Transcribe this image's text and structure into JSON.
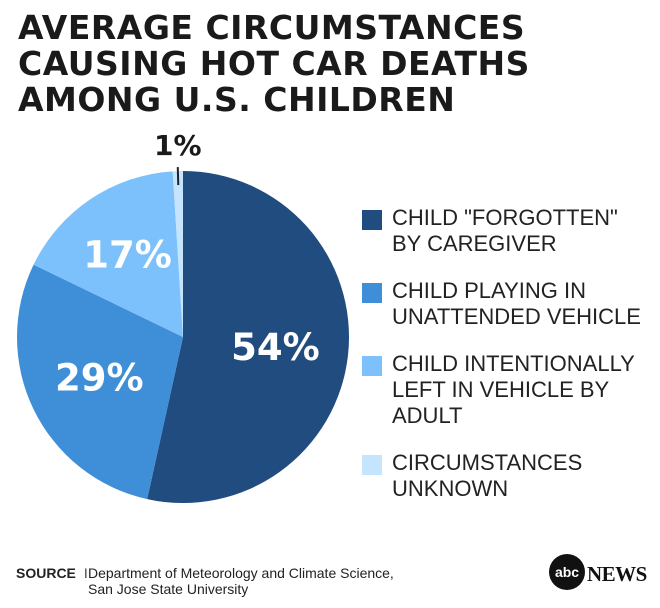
{
  "title_lines": [
    "AVERAGE CIRCUMSTANCES",
    "CAUSING HOT CAR DEATHS",
    "AMONG U.S. CHILDREN"
  ],
  "chart_data": {
    "type": "pie",
    "title": "AVERAGE CIRCUMSTANCES CAUSING HOT CAR DEATHS AMONG U.S. CHILDREN",
    "slices": [
      {
        "label": "CHILD \"FORGOTTEN\" BY CAREGIVER",
        "label_lines": [
          "CHILD \"FORGOTTEN\"",
          "BY CAREGIVER"
        ],
        "value": 54,
        "display": "54%",
        "color": "#214c80"
      },
      {
        "label": "CHILD PLAYING IN UNATTENDED VEHICLE",
        "label_lines": [
          "CHILD PLAYING IN",
          "UNATTENDED VEHICLE"
        ],
        "value": 29,
        "display": "29%",
        "color": "#3f8ed8"
      },
      {
        "label": "CHILD INTENTIONALLY LEFT IN VEHICLE BY ADULT",
        "label_lines": [
          "CHILD INTENTIONALLY",
          "LEFT IN VEHICLE BY",
          "ADULT"
        ],
        "value": 17,
        "display": "17%",
        "color": "#7cc1fb"
      },
      {
        "label": "CIRCUMSTANCES UNKNOWN",
        "label_lines": [
          "CIRCUMSTANCES",
          "UNKNOWN"
        ],
        "value": 1,
        "display": "1%",
        "color": "#c5e4fd"
      }
    ],
    "legend_position": "right"
  },
  "source": {
    "tag": "SOURCE",
    "separator": "I",
    "lines": [
      "Department of Meteorology and Climate Science,",
      "San Jose State University"
    ]
  },
  "logo": {
    "mark": "abc",
    "text": "NEWS"
  }
}
